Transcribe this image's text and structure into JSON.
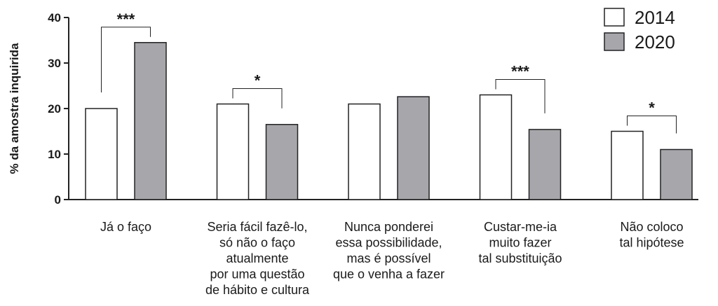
{
  "chart_data": {
    "type": "bar",
    "title": "",
    "ylabel": "% da amostra inquirida",
    "xlabel": "",
    "ylim": [
      0,
      40
    ],
    "yticks": [
      "0",
      "10",
      "20",
      "30",
      "40"
    ],
    "categories": [
      [
        "Já o faço"
      ],
      [
        "Seria fácil fazê-lo,",
        "só não o faço",
        "atualmente",
        "por uma questão",
        "de hábito e cultura"
      ],
      [
        "Nunca ponderei",
        "essa possibilidade,",
        "mas é possível",
        "que o venha a fazer"
      ],
      [
        "Custar-me-ia",
        "muito fazer",
        "tal substituição"
      ],
      [
        "Não coloco",
        "tal hipótese"
      ]
    ],
    "series": [
      {
        "name": "2014",
        "color": "#ffffff",
        "values": [
          20,
          21,
          21,
          23,
          15
        ]
      },
      {
        "name": "2020",
        "color": "#a7a6ab",
        "values": [
          34.5,
          16.5,
          22.6,
          15.4,
          11
        ]
      }
    ],
    "significance": [
      "***",
      "*",
      "",
      "***",
      "*"
    ],
    "legend": {
      "placement": "top-right"
    },
    "grid": false
  }
}
